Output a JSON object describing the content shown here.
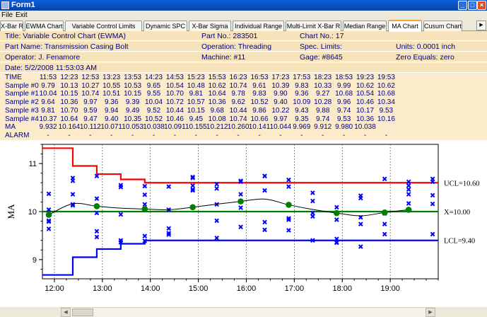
{
  "window": {
    "title": "Form1"
  },
  "menu": [
    "File",
    "Exit"
  ],
  "tabs": [
    "X-Bar R",
    "EWMA Chart",
    "Variable Control Limits",
    "Dynamic SPC",
    "X-Bar Sigma",
    "Individual Range",
    "Multi-Limit X-Bar R",
    "Median Range",
    "MA Chart",
    "Cusum Chart"
  ],
  "active_tab": "MA Chart",
  "header": {
    "title": "Title: Variable Control Chart (EWMA)",
    "part_no": "Part No.: 283501",
    "chart_no": "Chart No.: 17",
    "part_name": "Part Name: Transmission Casing Bolt",
    "operation": "Operation: Threading",
    "spec_limits": "Spec. Limits:",
    "units": "Units: 0.0001 inch",
    "operator": "Operator: J. Fenamore",
    "machine": "Machine: #11",
    "gage": "Gage: #8645",
    "zero_equals": "Zero Equals: zero",
    "date": "Date: 5/2/2008 11:53:03 AM"
  },
  "table": {
    "rows": [
      {
        "label": "TIME",
        "values": [
          "11:53",
          "12:23",
          "12:53",
          "13:23",
          "13:53",
          "14:23",
          "14:53",
          "15:23",
          "15:53",
          "16:23",
          "16:53",
          "17:23",
          "17:53",
          "18:23",
          "18:53",
          "19:23",
          "19:53"
        ]
      },
      {
        "label": "Sample #0",
        "values": [
          "9.79",
          "10.13",
          "10.27",
          "10.55",
          "10.53",
          "9.65",
          "10.54",
          "10.48",
          "10.62",
          "10.74",
          "9.61",
          "10.39",
          "9.83",
          "10.33",
          "9.99",
          "10.62",
          "10.62"
        ]
      },
      {
        "label": "Sample #1",
        "values": [
          "10.04",
          "10.15",
          "10.74",
          "10.51",
          "10.15",
          "9.55",
          "10.70",
          "9.81",
          "10.64",
          "9.78",
          "9.83",
          "9.90",
          "9.36",
          "9.27",
          "10.68",
          "10.54",
          "10.68"
        ]
      },
      {
        "label": "Sample #2",
        "values": [
          "9.64",
          "10.36",
          "9.97",
          "9.36",
          "9.39",
          "10.04",
          "10.72",
          "10.57",
          "10.36",
          "9.62",
          "10.52",
          "9.40",
          "10.09",
          "10.28",
          "9.96",
          "10.46",
          "10.34"
        ]
      },
      {
        "label": "Sample #3",
        "values": [
          "9.81",
          "10.70",
          "9.59",
          "9.94",
          "9.49",
          "9.52",
          "10.44",
          "10.15",
          "9.68",
          "10.44",
          "9.86",
          "10.22",
          "9.43",
          "9.88",
          "9.74",
          "10.17",
          "9.53"
        ]
      },
      {
        "label": "Sample #4",
        "values": [
          "10.37",
          "10.64",
          "9.47",
          "9.40",
          "10.35",
          "10.52",
          "10.46",
          "9.45",
          "10.08",
          "10.74",
          "10.66",
          "9.97",
          "9.35",
          "9.74",
          "9.53",
          "10.36",
          "10.16"
        ]
      },
      {
        "label": "MA",
        "values": [
          "9.932",
          "10.164",
          "10.112",
          "10.071",
          "10.053",
          "10.038",
          "10.091",
          "10.155",
          "10.212",
          "10.260",
          "10.141",
          "10.044",
          "9.969",
          "9.912",
          "9.980",
          "10.038",
          ""
        ]
      },
      {
        "label": "ALARM",
        "values": [
          "-",
          "-",
          "-",
          "-",
          "-",
          "-",
          "-",
          "-",
          "-",
          "-",
          "-",
          "-",
          "-",
          "-",
          "-",
          "-",
          "-"
        ]
      }
    ]
  },
  "chart_data": {
    "type": "line",
    "ylabel": "MA",
    "ylim": [
      8.6,
      11.4
    ],
    "yticks": [
      9,
      10,
      11
    ],
    "xticks": [
      "12:00",
      "13:00",
      "14:00",
      "15:00",
      "16:00",
      "17:00",
      "18:00",
      "19:00"
    ],
    "x_times": [
      "11:53",
      "12:23",
      "12:53",
      "13:23",
      "13:53",
      "14:23",
      "14:53",
      "15:23",
      "15:53",
      "16:23",
      "16:53",
      "17:23",
      "17:53",
      "18:23",
      "18:53",
      "19:23",
      "19:53"
    ],
    "samples": [
      [
        9.79,
        10.04,
        9.64,
        9.81,
        10.37
      ],
      [
        10.13,
        10.15,
        10.36,
        10.7,
        10.64
      ],
      [
        10.27,
        10.74,
        9.97,
        9.59,
        9.47
      ],
      [
        10.55,
        10.51,
        9.36,
        9.94,
        9.4
      ],
      [
        10.53,
        10.15,
        9.39,
        9.49,
        10.35
      ],
      [
        9.65,
        9.55,
        10.04,
        9.52,
        10.52
      ],
      [
        10.54,
        10.7,
        10.72,
        10.44,
        10.46
      ],
      [
        10.48,
        9.81,
        10.57,
        10.15,
        9.45
      ],
      [
        10.62,
        10.64,
        10.36,
        9.68,
        10.08
      ],
      [
        10.74,
        9.78,
        9.62,
        10.44,
        10.74
      ],
      [
        9.61,
        9.83,
        10.52,
        9.86,
        10.66
      ],
      [
        10.39,
        9.9,
        9.4,
        10.22,
        9.97
      ],
      [
        9.83,
        9.36,
        10.09,
        9.43,
        9.35
      ],
      [
        10.33,
        9.27,
        10.28,
        9.88,
        9.74
      ],
      [
        9.99,
        10.68,
        9.96,
        9.74,
        9.53
      ],
      [
        10.62,
        10.54,
        10.46,
        10.17,
        10.36
      ],
      [
        10.62,
        10.68,
        10.34,
        9.53,
        10.16
      ]
    ],
    "ma": [
      9.932,
      10.164,
      10.112,
      10.071,
      10.053,
      10.038,
      10.091,
      10.155,
      10.212,
      10.26,
      10.141,
      10.044,
      9.969,
      9.912,
      9.98,
      10.038
    ],
    "ucl_steps": [
      11.32,
      10.95,
      10.78,
      10.67,
      10.6
    ],
    "lcl_steps": [
      8.68,
      9.05,
      9.22,
      9.33,
      9.4
    ],
    "center": 10.0,
    "labels": {
      "ucl": "UCL=10.60",
      "center": "X=10.00",
      "lcl": "LCL=9.40"
    },
    "colors": {
      "ucl": "#ff0000",
      "lcl": "#0000ff",
      "center": "#008000",
      "ma_line": "#000000",
      "ma_marker": "#008000",
      "sample_marker": "#0000ff"
    }
  }
}
